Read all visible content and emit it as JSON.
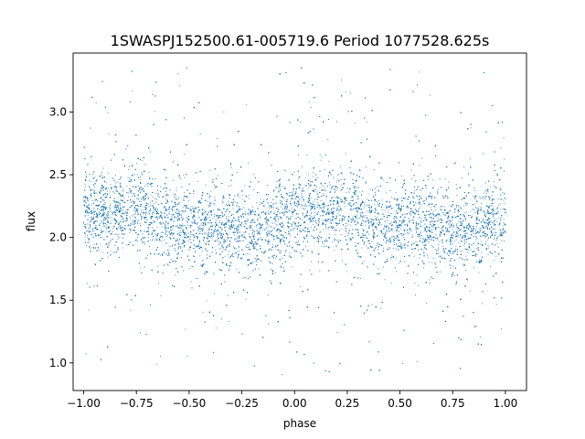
{
  "chart_data": {
    "type": "scatter",
    "title": "1SWASPJ152500.61-005719.6 Period 1077528.625s",
    "xlabel": "phase",
    "ylabel": "flux",
    "xlim": [
      -1.05,
      1.1
    ],
    "ylim": [
      0.78,
      3.47
    ],
    "xticks": [
      -1.0,
      -0.75,
      -0.5,
      -0.25,
      0.0,
      0.25,
      0.5,
      0.75,
      1.0
    ],
    "xtick_labels": [
      "−1.00",
      "−0.75",
      "−0.50",
      "−0.25",
      "0.00",
      "0.25",
      "0.50",
      "0.75",
      "1.00"
    ],
    "yticks": [
      1.0,
      1.5,
      2.0,
      2.5,
      3.0
    ],
    "ytick_labels": [
      "1.0",
      "1.5",
      "2.0",
      "2.5",
      "3.0"
    ],
    "grid": false,
    "legend": "none",
    "marker_color": "#1f77b4",
    "x_range": [
      -1.0,
      1.0
    ],
    "profile": {
      "phase": [
        -1.0,
        -0.9,
        -0.8,
        -0.7,
        -0.6,
        -0.5,
        -0.4,
        -0.3,
        -0.2,
        -0.1,
        0.0,
        0.1,
        0.2,
        0.3,
        0.4,
        0.5,
        0.6,
        0.7,
        0.8,
        0.9,
        1.0
      ],
      "median_flux": [
        2.18,
        2.2,
        2.24,
        2.22,
        2.12,
        2.08,
        2.1,
        2.06,
        2.03,
        2.1,
        2.18,
        2.2,
        2.24,
        2.22,
        2.12,
        2.08,
        2.1,
        2.06,
        2.03,
        2.1,
        2.18
      ],
      "scatter": 0.16,
      "outlier_range": [
        0.9,
        3.38
      ]
    },
    "points_count": 22000
  }
}
